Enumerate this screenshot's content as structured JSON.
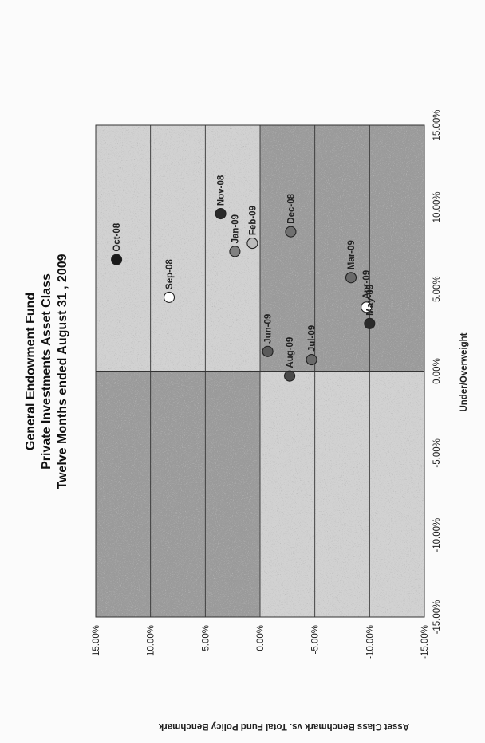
{
  "chart_data": {
    "type": "scatter",
    "title": "General Endowment Fund",
    "subtitle": "Private Investments Asset Class",
    "subtitle2": "Twelve Months ended August  31 , 2009",
    "xlabel": "Under/Overweight",
    "ylabel": "Asset Class Benchmark vs. Total Fund Policy Benchmark",
    "xlim": [
      -15,
      15
    ],
    "ylim": [
      -15,
      15
    ],
    "x_ticks": [
      "-15.00%",
      "-10.00%",
      "-5.00%",
      "0.00%",
      "5.00%",
      "10.00%",
      "15.00%"
    ],
    "y_ticks": [
      "-15.00%",
      "-10.00%",
      "-5.00%",
      "0.00%",
      "5.00%",
      "10.00%",
      "15.00%"
    ],
    "x_tick_values": [
      -15,
      -10,
      -5,
      0,
      5,
      10,
      15
    ],
    "y_tick_values": [
      -15,
      -10,
      -5,
      0,
      5,
      10,
      15
    ],
    "grid": "horizontal",
    "quadrant_colors": {
      "dark": "#9a9a9a",
      "light": "#d2d2d2",
      "stipple": "#7a7a7a"
    },
    "points": [
      {
        "label": "Sep-08",
        "x": 4.5,
        "y": 8.3,
        "fill": "#ffffff"
      },
      {
        "label": "Oct-08",
        "x": 6.8,
        "y": 13.1,
        "fill": "#1a1a1a"
      },
      {
        "label": "Nov-08",
        "x": 9.6,
        "y": 3.6,
        "fill": "#2a2a2a"
      },
      {
        "label": "Dec-08",
        "x": 8.5,
        "y": -2.8,
        "fill": "#707070"
      },
      {
        "label": "Jan-09",
        "x": 7.3,
        "y": 2.3,
        "fill": "#808080"
      },
      {
        "label": "Feb-09",
        "x": 7.8,
        "y": 0.7,
        "fill": "#bbbbbb"
      },
      {
        "label": "Mar-09",
        "x": 5.7,
        "y": -8.3,
        "fill": "#6a6a6a"
      },
      {
        "label": "Apr-09",
        "x": 3.9,
        "y": -9.7,
        "fill": "#ffffff"
      },
      {
        "label": "May-09",
        "x": 2.9,
        "y": -10.0,
        "fill": "#2a2a2a"
      },
      {
        "label": "Jun-09",
        "x": 1.2,
        "y": -0.7,
        "fill": "#5a5a5a"
      },
      {
        "label": "Jul-09",
        "x": 0.7,
        "y": -4.7,
        "fill": "#6a6a6a"
      },
      {
        "label": "Aug-09",
        "x": -0.3,
        "y": -2.7,
        "fill": "#4a4a4a"
      }
    ]
  }
}
